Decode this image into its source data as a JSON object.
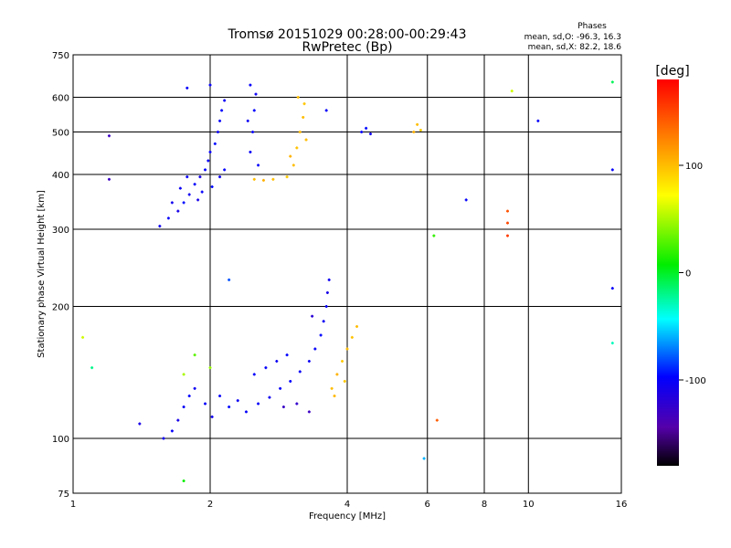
{
  "chart_data": {
    "type": "scatter",
    "title": "Tromsø 20151029 00:28:00-00:29:43",
    "subtitle": "RwPretec (Bp)",
    "stats": {
      "heading": "Phases",
      "line1": "mean, sd,O: -96.3, 16.3",
      "line2": "mean, sd,X:  82.2, 18.6"
    },
    "xlabel": "Frequency [MHz]",
    "ylabel": "Stationary phase Virtual Height [km]",
    "x_scale": "log",
    "y_scale": "log",
    "xlim": [
      1,
      16
    ],
    "ylim": [
      75,
      750
    ],
    "x_ticks": [
      1,
      2,
      4,
      6,
      8,
      10,
      16
    ],
    "y_ticks": [
      75,
      100,
      200,
      300,
      400,
      500,
      600,
      750
    ],
    "grid": true,
    "colorbar": {
      "label": "[deg]",
      "range": [
        -180,
        180
      ],
      "ticks": [
        100,
        0,
        -100
      ]
    },
    "points": [
      {
        "x": 1.55,
        "y": 305,
        "phase": -105
      },
      {
        "x": 1.62,
        "y": 318,
        "phase": -100
      },
      {
        "x": 1.7,
        "y": 330,
        "phase": -110
      },
      {
        "x": 1.75,
        "y": 345,
        "phase": -95
      },
      {
        "x": 1.8,
        "y": 360,
        "phase": -105
      },
      {
        "x": 1.85,
        "y": 380,
        "phase": -100
      },
      {
        "x": 1.9,
        "y": 395,
        "phase": -108
      },
      {
        "x": 1.95,
        "y": 410,
        "phase": -98
      },
      {
        "x": 1.98,
        "y": 430,
        "phase": -102
      },
      {
        "x": 2.0,
        "y": 450,
        "phase": -100
      },
      {
        "x": 2.05,
        "y": 470,
        "phase": -95
      },
      {
        "x": 2.08,
        "y": 500,
        "phase": -105
      },
      {
        "x": 2.1,
        "y": 530,
        "phase": -100
      },
      {
        "x": 2.12,
        "y": 560,
        "phase": -98
      },
      {
        "x": 2.15,
        "y": 590,
        "phase": -102
      },
      {
        "x": 1.88,
        "y": 350,
        "phase": -110
      },
      {
        "x": 1.92,
        "y": 365,
        "phase": -100
      },
      {
        "x": 2.02,
        "y": 375,
        "phase": -95
      },
      {
        "x": 2.1,
        "y": 395,
        "phase": -104
      },
      {
        "x": 2.15,
        "y": 410,
        "phase": -99
      },
      {
        "x": 1.72,
        "y": 372,
        "phase": -103
      },
      {
        "x": 1.78,
        "y": 395,
        "phase": -101
      },
      {
        "x": 1.65,
        "y": 345,
        "phase": -106
      },
      {
        "x": 2.0,
        "y": 640,
        "phase": -100
      },
      {
        "x": 1.78,
        "y": 630,
        "phase": -100
      },
      {
        "x": 2.45,
        "y": 450,
        "phase": -102
      },
      {
        "x": 2.48,
        "y": 500,
        "phase": -100
      },
      {
        "x": 2.5,
        "y": 560,
        "phase": -97
      },
      {
        "x": 2.52,
        "y": 610,
        "phase": -104
      },
      {
        "x": 2.45,
        "y": 640,
        "phase": -100
      },
      {
        "x": 2.55,
        "y": 420,
        "phase": -99
      },
      {
        "x": 2.42,
        "y": 530,
        "phase": -103
      },
      {
        "x": 2.5,
        "y": 390,
        "phase": 100
      },
      {
        "x": 2.62,
        "y": 388,
        "phase": 105
      },
      {
        "x": 2.75,
        "y": 390,
        "phase": 100
      },
      {
        "x": 2.95,
        "y": 395,
        "phase": 95
      },
      {
        "x": 3.05,
        "y": 420,
        "phase": 100
      },
      {
        "x": 3.1,
        "y": 460,
        "phase": 98
      },
      {
        "x": 3.15,
        "y": 500,
        "phase": 102
      },
      {
        "x": 3.2,
        "y": 540,
        "phase": 100
      },
      {
        "x": 3.22,
        "y": 580,
        "phase": 96
      },
      {
        "x": 3.0,
        "y": 440,
        "phase": 104
      },
      {
        "x": 3.25,
        "y": 480,
        "phase": 101
      },
      {
        "x": 3.12,
        "y": 600,
        "phase": 99
      },
      {
        "x": 1.58,
        "y": 100,
        "phase": -105
      },
      {
        "x": 1.65,
        "y": 104,
        "phase": -100
      },
      {
        "x": 1.7,
        "y": 110,
        "phase": -110
      },
      {
        "x": 1.75,
        "y": 118,
        "phase": -102
      },
      {
        "x": 1.8,
        "y": 125,
        "phase": -98
      },
      {
        "x": 1.85,
        "y": 130,
        "phase": -104
      },
      {
        "x": 1.95,
        "y": 120,
        "phase": -100
      },
      {
        "x": 2.02,
        "y": 112,
        "phase": -106
      },
      {
        "x": 2.1,
        "y": 125,
        "phase": -100
      },
      {
        "x": 2.2,
        "y": 118,
        "phase": -95
      },
      {
        "x": 2.3,
        "y": 122,
        "phase": -103
      },
      {
        "x": 2.4,
        "y": 115,
        "phase": -100
      },
      {
        "x": 2.55,
        "y": 120,
        "phase": -100
      },
      {
        "x": 2.7,
        "y": 124,
        "phase": -105
      },
      {
        "x": 2.85,
        "y": 130,
        "phase": -100
      },
      {
        "x": 3.0,
        "y": 135,
        "phase": -98
      },
      {
        "x": 3.15,
        "y": 142,
        "phase": -102
      },
      {
        "x": 3.3,
        "y": 150,
        "phase": -104
      },
      {
        "x": 3.4,
        "y": 160,
        "phase": -100
      },
      {
        "x": 3.5,
        "y": 172,
        "phase": -96
      },
      {
        "x": 3.55,
        "y": 185,
        "phase": -103
      },
      {
        "x": 3.6,
        "y": 200,
        "phase": -101
      },
      {
        "x": 3.62,
        "y": 215,
        "phase": -110
      },
      {
        "x": 3.65,
        "y": 230,
        "phase": -105
      },
      {
        "x": 2.5,
        "y": 140,
        "phase": -99
      },
      {
        "x": 2.65,
        "y": 145,
        "phase": -100
      },
      {
        "x": 2.8,
        "y": 150,
        "phase": -104
      },
      {
        "x": 2.95,
        "y": 155,
        "phase": -98
      },
      {
        "x": 3.1,
        "y": 120,
        "phase": -125
      },
      {
        "x": 3.3,
        "y": 115,
        "phase": -130
      },
      {
        "x": 2.9,
        "y": 118,
        "phase": -128
      },
      {
        "x": 3.35,
        "y": 190,
        "phase": -120
      },
      {
        "x": 3.7,
        "y": 130,
        "phase": 100
      },
      {
        "x": 3.8,
        "y": 140,
        "phase": 105
      },
      {
        "x": 3.9,
        "y": 150,
        "phase": 95
      },
      {
        "x": 4.0,
        "y": 160,
        "phase": 100
      },
      {
        "x": 4.1,
        "y": 170,
        "phase": 98
      },
      {
        "x": 3.75,
        "y": 125,
        "phase": 102
      },
      {
        "x": 3.95,
        "y": 135,
        "phase": 96
      },
      {
        "x": 4.2,
        "y": 180,
        "phase": 100
      },
      {
        "x": 1.75,
        "y": 140,
        "phase": 50
      },
      {
        "x": 1.85,
        "y": 155,
        "phase": 30
      },
      {
        "x": 2.0,
        "y": 145,
        "phase": 45
      },
      {
        "x": 4.3,
        "y": 500,
        "phase": -100
      },
      {
        "x": 4.4,
        "y": 510,
        "phase": -95
      },
      {
        "x": 4.5,
        "y": 495,
        "phase": -105
      },
      {
        "x": 5.7,
        "y": 520,
        "phase": 100
      },
      {
        "x": 5.8,
        "y": 505,
        "phase": 95
      },
      {
        "x": 5.6,
        "y": 500,
        "phase": 105
      },
      {
        "x": 9.0,
        "y": 310,
        "phase": 150
      },
      {
        "x": 9.0,
        "y": 330,
        "phase": 145
      },
      {
        "x": 9.0,
        "y": 290,
        "phase": 155
      },
      {
        "x": 1.2,
        "y": 490,
        "phase": -130
      },
      {
        "x": 1.2,
        "y": 390,
        "phase": -130
      },
      {
        "x": 7.3,
        "y": 350,
        "phase": -100
      },
      {
        "x": 10.5,
        "y": 530,
        "phase": -100
      },
      {
        "x": 15.3,
        "y": 410,
        "phase": -100
      },
      {
        "x": 15.3,
        "y": 220,
        "phase": -100
      },
      {
        "x": 3.6,
        "y": 560,
        "phase": -100
      },
      {
        "x": 6.2,
        "y": 290,
        "phase": 20
      },
      {
        "x": 5.9,
        "y": 90,
        "phase": -60
      },
      {
        "x": 1.05,
        "y": 170,
        "phase": 60
      },
      {
        "x": 1.1,
        "y": 145,
        "phase": -20
      },
      {
        "x": 1.4,
        "y": 108,
        "phase": -110
      },
      {
        "x": 1.75,
        "y": 80,
        "phase": 10
      },
      {
        "x": 2.2,
        "y": 230,
        "phase": -80
      },
      {
        "x": 6.3,
        "y": 110,
        "phase": 140
      },
      {
        "x": 15.3,
        "y": 650,
        "phase": -10
      },
      {
        "x": 15.3,
        "y": 165,
        "phase": -30
      },
      {
        "x": 9.2,
        "y": 620,
        "phase": 60
      }
    ]
  }
}
